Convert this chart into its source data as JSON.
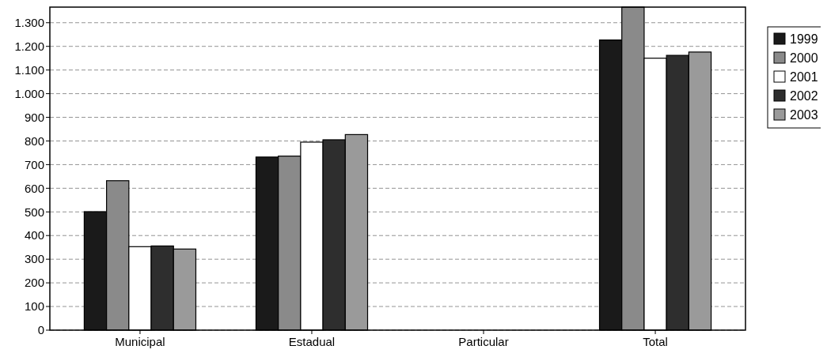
{
  "chart_data": {
    "type": "bar",
    "categories": [
      "Municipal",
      "Estadual",
      "Particular",
      "Total"
    ],
    "series": [
      {
        "name": "1999",
        "color": "#1a1a1a",
        "values": [
          501,
          732,
          0,
          1227
        ]
      },
      {
        "name": "2000",
        "color": "#8a8a8a",
        "values": [
          632,
          736,
          0,
          1366
        ]
      },
      {
        "name": "2001",
        "color": "#ffffff",
        "values": [
          353,
          795,
          0,
          1150
        ]
      },
      {
        "name": "2002",
        "color": "#2e2e2e",
        "values": [
          356,
          805,
          0,
          1162
        ]
      },
      {
        "name": "2003",
        "color": "#9a9a9a",
        "values": [
          343,
          827,
          0,
          1176
        ]
      }
    ],
    "ylim": [
      0,
      1366
    ],
    "yticks": [
      0,
      100,
      200,
      300,
      400,
      500,
      600,
      700,
      800,
      900,
      {
        "value": 1000,
        "label": "1.000"
      },
      {
        "value": 1100,
        "label": "1.100"
      },
      {
        "value": 1200,
        "label": "1.200"
      },
      {
        "value": 1300,
        "label": "1.300"
      }
    ],
    "grid": "y",
    "legend": "right"
  }
}
